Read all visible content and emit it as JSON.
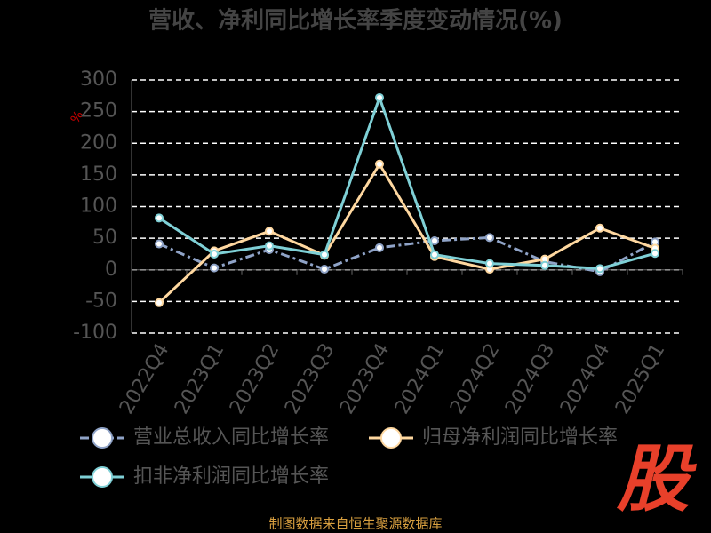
{
  "chart_data": {
    "type": "line",
    "title": "营收、净利同比增长率季度变动情况(%)",
    "y_label": "%",
    "categories": [
      "2022Q4",
      "2023Q1",
      "2023Q2",
      "2023Q3",
      "2023Q4",
      "2024Q1",
      "2024Q2",
      "2024Q3",
      "2024Q4",
      "2025Q1"
    ],
    "series": [
      {
        "name": "营业总收入同比增长率",
        "color": "#8fa3c7",
        "dash": "10,4,3,4",
        "values": [
          41,
          3,
          32,
          1,
          35,
          46,
          51,
          13,
          -3,
          44
        ]
      },
      {
        "name": "归母净利润同比增长率",
        "color": "#ffd8a0",
        "values": [
          -52,
          30,
          61,
          23,
          167,
          21,
          1,
          17,
          66,
          34
        ]
      },
      {
        "name": "扣非净利润同比增长率",
        "color": "#7fd0d6",
        "values": [
          82,
          25,
          38,
          24,
          272,
          24,
          10,
          7,
          2,
          26
        ]
      }
    ],
    "ylim": [
      -100,
      300
    ],
    "yticks": [
      -100,
      -50,
      0,
      50,
      100,
      150,
      200,
      250,
      300
    ],
    "grid": true,
    "source": "制图数据来自恒生聚源数据库",
    "logo": "股"
  }
}
